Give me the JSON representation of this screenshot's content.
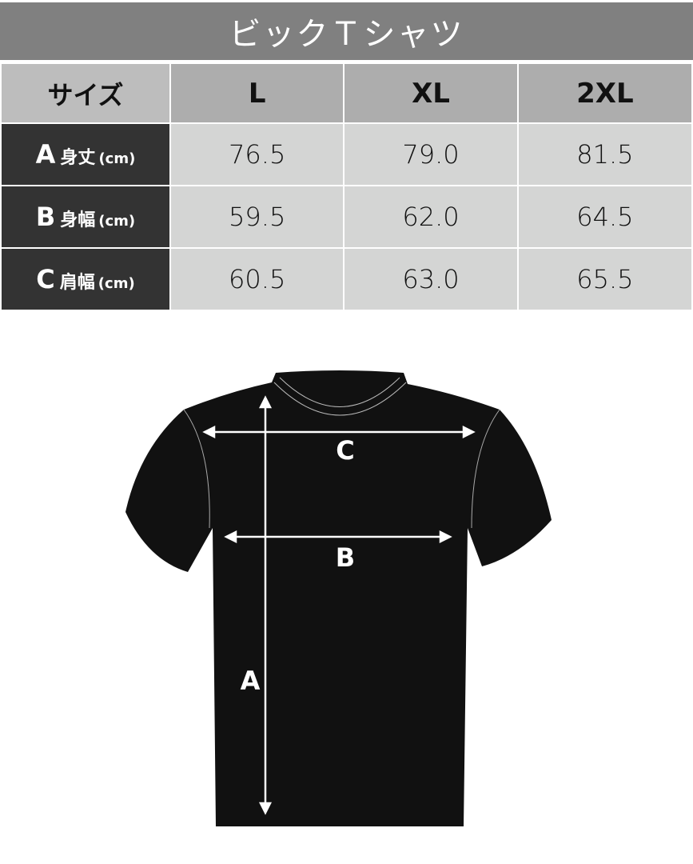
{
  "title": "ビックＴシャツ",
  "header": {
    "size_label": "サイズ",
    "sizes": [
      "L",
      "XL",
      "2XL"
    ]
  },
  "rows": [
    {
      "letter": "A",
      "name": "身丈",
      "unit": "(cm)",
      "values": [
        "76.5",
        "79.0",
        "81.5"
      ]
    },
    {
      "letter": "B",
      "name": "身幅",
      "unit": "(cm)",
      "values": [
        "59.5",
        "62.0",
        "64.5"
      ]
    },
    {
      "letter": "C",
      "name": "肩幅",
      "unit": "(cm)",
      "values": [
        "60.5",
        "63.0",
        "65.5"
      ]
    }
  ],
  "diagram": {
    "labels": {
      "a": "A",
      "b": "B",
      "c": "C"
    }
  }
}
